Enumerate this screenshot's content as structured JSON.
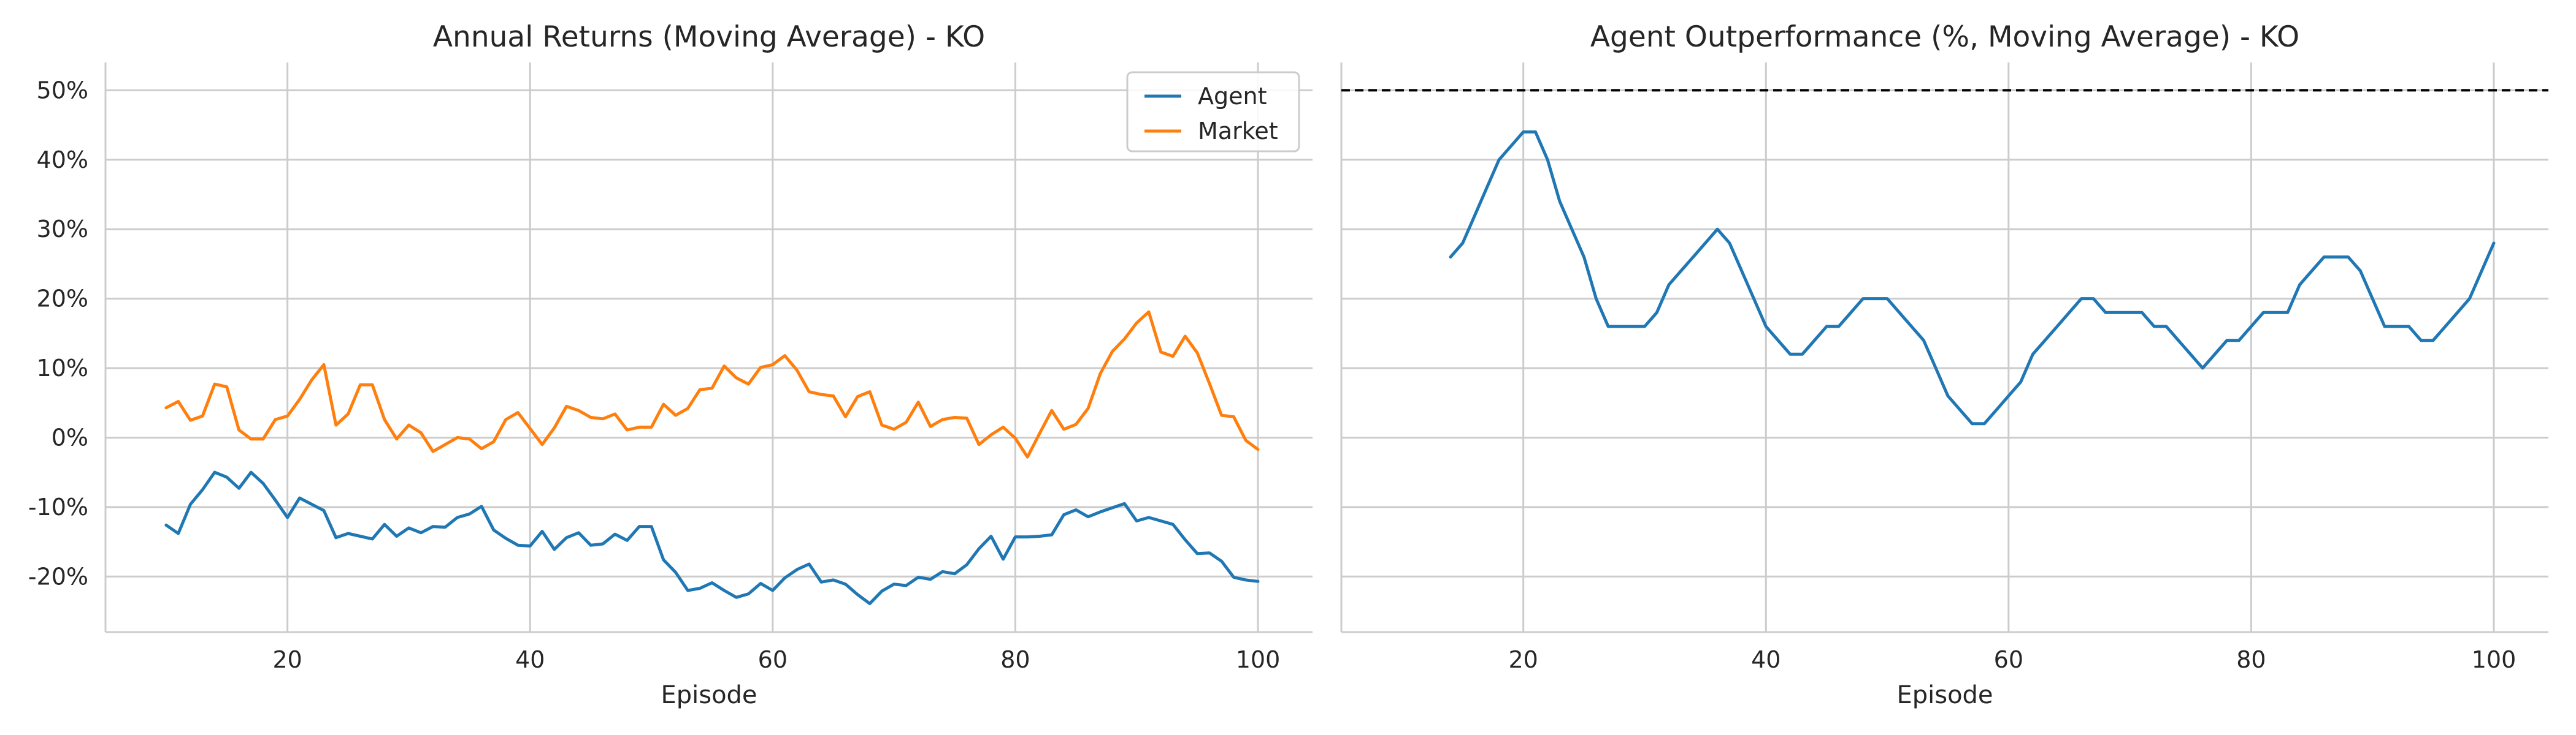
{
  "chart_data": [
    {
      "type": "line",
      "title": "Annual Returns (Moving Average) - KO",
      "xlabel": "Episode",
      "ylabel": "",
      "xlim": [
        5,
        104.5
      ],
      "ylim": [
        -28,
        54
      ],
      "xticks": [
        20,
        40,
        60,
        80,
        100
      ],
      "yticks": [
        -20,
        -10,
        0,
        10,
        20,
        30,
        40,
        50
      ],
      "y_format": "percent",
      "grid": true,
      "legend": "top-right",
      "x": [
        10,
        11,
        12,
        13,
        14,
        15,
        16,
        17,
        18,
        19,
        20,
        21,
        22,
        23,
        24,
        25,
        26,
        27,
        28,
        29,
        30,
        31,
        32,
        33,
        34,
        35,
        36,
        37,
        38,
        39,
        40,
        41,
        42,
        43,
        44,
        45,
        46,
        47,
        48,
        49,
        50,
        51,
        52,
        53,
        54,
        55,
        56,
        57,
        58,
        59,
        60,
        61,
        62,
        63,
        64,
        65,
        66,
        67,
        68,
        69,
        70,
        71,
        72,
        73,
        74,
        75,
        76,
        77,
        78,
        79,
        80,
        81,
        82,
        83,
        84,
        85,
        86,
        87,
        88,
        89,
        90,
        91,
        92,
        93,
        94,
        95,
        96,
        97,
        98,
        99,
        100
      ],
      "series": [
        {
          "name": "Agent",
          "color": "#1f77b4",
          "values": [
            -12.6,
            -13.8,
            -9.6,
            -7.5,
            -5,
            -5.7,
            -7.3,
            -5,
            -6.6,
            -9,
            -11.5,
            -8.7,
            -9.6,
            -10.5,
            -14.4,
            -13.8,
            -14.2,
            -14.6,
            -12.5,
            -14.2,
            -13,
            -13.7,
            -12.8,
            -12.9,
            -11.5,
            -11,
            -9.9,
            -13.3,
            -14.5,
            -15.5,
            -15.6,
            -13.5,
            -16.1,
            -14.4,
            -13.7,
            -15.5,
            -15.3,
            -13.9,
            -14.8,
            -12.8,
            -12.8,
            -17.6,
            -19.4,
            -22,
            -21.7,
            -20.9,
            -22,
            -23,
            -22.5,
            -21,
            -22,
            -20.2,
            -19,
            -18.2,
            -20.8,
            -20.5,
            -21.1,
            -22.6,
            -23.9,
            -22.1,
            -21.1,
            -21.3,
            -20.1,
            -20.4,
            -19.3,
            -19.6,
            -18.3,
            -16,
            -14.2,
            -17.5,
            -14.3,
            -14.3,
            -14.2,
            -14,
            -11.1,
            -10.4,
            -11.4,
            -10.7,
            -10.1,
            -9.5,
            -12,
            -11.5,
            -12,
            -12.5,
            -14.7,
            -16.7,
            -16.6,
            -17.8,
            -20.1,
            -20.5,
            -20.7
          ]
        },
        {
          "name": "Market",
          "color": "#ff7f0e",
          "values": [
            4.3,
            5.2,
            2.5,
            3.1,
            7.7,
            7.3,
            1.1,
            -0.2,
            -0.2,
            2.6,
            3.1,
            5.5,
            8.3,
            10.5,
            1.8,
            3.4,
            7.6,
            7.6,
            2.6,
            -0.2,
            1.8,
            0.7,
            -2,
            -1,
            0,
            -0.2,
            -1.6,
            -0.6,
            2.6,
            3.6,
            1.3,
            -1,
            1.4,
            4.5,
            3.9,
            2.9,
            2.7,
            3.4,
            1.1,
            1.5,
            1.5,
            4.8,
            3.2,
            4.2,
            6.9,
            7.1,
            10.3,
            8.6,
            7.7,
            10.1,
            10.5,
            11.8,
            9.7,
            6.6,
            6.2,
            6,
            3,
            5.9,
            6.6,
            1.8,
            1.2,
            2.2,
            5.1,
            1.6,
            2.6,
            2.9,
            2.8,
            -1,
            0.4,
            1.5,
            -0.1,
            -2.8,
            0.6,
            3.9,
            1.2,
            1.9,
            4.2,
            9.2,
            12.4,
            14.2,
            16.5,
            18.1,
            12.3,
            11.7,
            14.6,
            12.2,
            7.8,
            3.2,
            3,
            -0.4,
            -1.7
          ]
        }
      ]
    },
    {
      "type": "line",
      "title": "Agent Outperformance (%, Moving Average) - KO",
      "xlabel": "Episode",
      "ylabel": "",
      "xlim": [
        5,
        104.5
      ],
      "ylim": [
        -28,
        54
      ],
      "xticks": [
        20,
        40,
        60,
        80,
        100
      ],
      "yticks": [
        -20,
        -10,
        0,
        10,
        20,
        30,
        40,
        50
      ],
      "y_tick_labels_visible": false,
      "grid": true,
      "reference_line": {
        "y": 50,
        "style": "dashed",
        "color": "#000000"
      },
      "x": [
        14,
        15,
        16,
        17,
        18,
        19,
        20,
        21,
        22,
        23,
        24,
        25,
        26,
        27,
        28,
        29,
        30,
        31,
        32,
        33,
        34,
        35,
        36,
        37,
        38,
        39,
        40,
        41,
        42,
        43,
        44,
        45,
        46,
        47,
        48,
        49,
        50,
        51,
        52,
        53,
        54,
        55,
        56,
        57,
        58,
        59,
        60,
        61,
        62,
        63,
        64,
        65,
        66,
        67,
        68,
        69,
        70,
        71,
        72,
        73,
        74,
        75,
        76,
        77,
        78,
        79,
        80,
        81,
        82,
        83,
        84,
        85,
        86,
        87,
        88,
        89,
        90,
        91,
        92,
        93,
        94,
        95,
        96,
        97,
        98,
        99,
        100
      ],
      "series": [
        {
          "color": "#1f77b4",
          "values": [
            26,
            28,
            32,
            36,
            40,
            42,
            44,
            44,
            40,
            34,
            30,
            26,
            20,
            16,
            16,
            16,
            16,
            18,
            22,
            24,
            26,
            28,
            30,
            28,
            24,
            20,
            16,
            14,
            12,
            12,
            14,
            16,
            16,
            18,
            20,
            20,
            20,
            18,
            16,
            14,
            10,
            6,
            4,
            2,
            2,
            4,
            6,
            8,
            12,
            14,
            16,
            18,
            20,
            20,
            18,
            18,
            18,
            18,
            16,
            16,
            14,
            12,
            10,
            12,
            14,
            14,
            16,
            18,
            18,
            18,
            22,
            24,
            26,
            26,
            26,
            24,
            20,
            16,
            16,
            16,
            14,
            14,
            16,
            18,
            20,
            24,
            28
          ]
        }
      ]
    }
  ]
}
